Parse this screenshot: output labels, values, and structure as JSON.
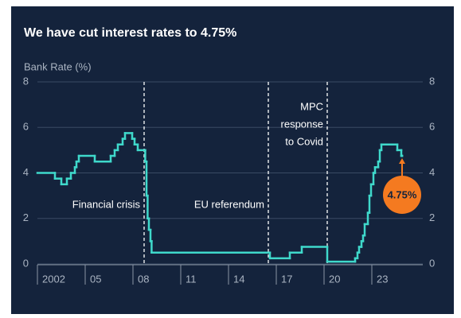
{
  "chart_data": {
    "type": "step",
    "title": "We have cut interest rates to 4.75%",
    "y_axis_label": "Bank Rate (%)",
    "xlim": [
      2002,
      2026.2
    ],
    "xticks": [
      2002,
      {
        "value": 2005,
        "label": "05"
      },
      {
        "value": 2008,
        "label": "08"
      },
      {
        "value": 2011,
        "label": "11"
      },
      {
        "value": 2014,
        "label": "14"
      },
      {
        "value": 2017,
        "label": "17"
      },
      {
        "value": 2020,
        "label": "20"
      },
      {
        "value": 2023,
        "label": "23"
      }
    ],
    "ylim": [
      0,
      8
    ],
    "yticks": [
      0,
      2,
      4,
      6,
      8
    ],
    "y2lim": [
      0,
      8
    ],
    "y2ticks": [
      0,
      2,
      4,
      6,
      8
    ],
    "grid": true,
    "series": [
      {
        "name": "Bank Rate",
        "color": "#3fd9cb",
        "x": [
          2002.0,
          2003.1,
          2003.5,
          2003.85,
          2004.1,
          2004.35,
          2004.45,
          2004.6,
          2005.6,
          2006.6,
          2006.85,
          2007.05,
          2007.35,
          2007.5,
          2007.95,
          2008.1,
          2008.3,
          2008.77,
          2008.85,
          2008.92,
          2009.0,
          2009.1,
          2009.17,
          2016.6,
          2017.85,
          2018.6,
          2020.2,
          2021.95,
          2022.1,
          2022.2,
          2022.35,
          2022.45,
          2022.55,
          2022.75,
          2022.85,
          2022.95,
          2023.1,
          2023.2,
          2023.4,
          2023.5,
          2023.6,
          2024.6,
          2024.85,
          2024.9
        ],
        "values": [
          4.0,
          3.75,
          3.5,
          3.75,
          4.0,
          4.25,
          4.5,
          4.75,
          4.5,
          4.75,
          5.0,
          5.25,
          5.5,
          5.75,
          5.5,
          5.25,
          5.0,
          4.5,
          3.0,
          2.0,
          1.5,
          1.0,
          0.5,
          0.25,
          0.5,
          0.75,
          0.1,
          0.25,
          0.5,
          0.75,
          1.0,
          1.25,
          1.75,
          2.25,
          3.0,
          3.5,
          4.0,
          4.25,
          4.5,
          5.0,
          5.25,
          5.0,
          4.75,
          4.75
        ]
      }
    ],
    "events": [
      {
        "x": 2008.7,
        "lines": [
          "Financial crisis"
        ]
      },
      {
        "x": 2016.5,
        "lines": [
          "EU referendum"
        ]
      },
      {
        "x": 2020.2,
        "lines": [
          "MPC",
          "response",
          "to Covid"
        ]
      }
    ],
    "callout": {
      "x": 2024.9,
      "value": 4.75,
      "label": "4.75%",
      "color": "#f47a20"
    }
  }
}
